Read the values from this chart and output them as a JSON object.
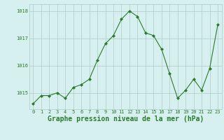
{
  "x": [
    0,
    1,
    2,
    3,
    4,
    5,
    6,
    7,
    8,
    9,
    10,
    11,
    12,
    13,
    14,
    15,
    16,
    17,
    18,
    19,
    20,
    21,
    22,
    23
  ],
  "y": [
    1014.6,
    1014.9,
    1014.9,
    1015.0,
    1014.8,
    1015.2,
    1015.3,
    1015.5,
    1016.2,
    1016.8,
    1017.1,
    1017.7,
    1018.0,
    1017.8,
    1017.2,
    1017.1,
    1016.6,
    1015.7,
    1014.8,
    1015.1,
    1015.5,
    1015.1,
    1015.9,
    1017.5
  ],
  "line_color": "#2d7a2d",
  "marker": "D",
  "marker_size": 2.0,
  "background_color": "#d6f0f0",
  "grid_color": "#b0c8c8",
  "xlabel": "Graphe pression niveau de la mer (hPa)",
  "xlabel_fontsize": 7,
  "xlabel_color": "#2d7a2d",
  "tick_color": "#2d7a2d",
  "tick_fontsize": 5,
  "ylim": [
    1014.4,
    1018.25
  ],
  "yticks": [
    1015,
    1016,
    1017,
    1018
  ],
  "xlim": [
    -0.5,
    23.5
  ],
  "xticks": [
    0,
    1,
    2,
    3,
    4,
    5,
    6,
    7,
    8,
    9,
    10,
    11,
    12,
    13,
    14,
    15,
    16,
    17,
    18,
    19,
    20,
    21,
    22,
    23
  ]
}
